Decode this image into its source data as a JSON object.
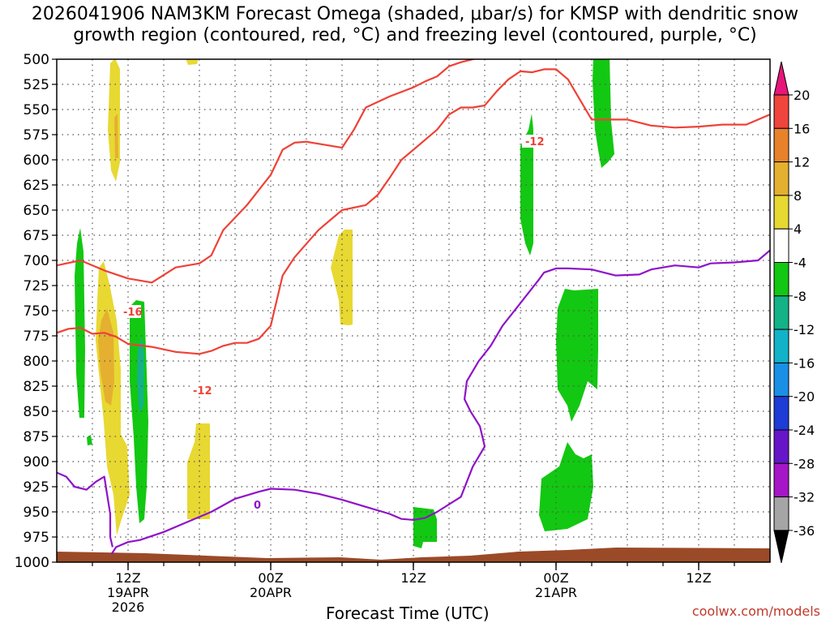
{
  "chart_data": {
    "type": "time-height contour",
    "title_line1": "2026041906 NAM3KM Forecast Omega (shaded, μbar/s) for KMSP with dendritic snow",
    "title_line2": "growth region (contoured, red, °C) and freezing level (contoured, purple, °C)",
    "xlabel": "Forecast Time (UTC)",
    "credit": "coolwx.com/models",
    "x_range_hours": [
      0,
      60
    ],
    "x_ticks": [
      {
        "hour": 6,
        "label": "12Z",
        "date1": "19APR",
        "date2": "2026"
      },
      {
        "hour": 18,
        "label": "00Z",
        "date1": "20APR",
        "date2": ""
      },
      {
        "hour": 30,
        "label": "12Z",
        "date1": "",
        "date2": ""
      },
      {
        "hour": 42,
        "label": "00Z",
        "date1": "21APR",
        "date2": ""
      },
      {
        "hour": 54,
        "label": "12Z",
        "date1": "",
        "date2": ""
      }
    ],
    "y_range_mb": [
      500,
      1000
    ],
    "y_ticks": [
      500,
      525,
      550,
      575,
      600,
      625,
      650,
      675,
      700,
      725,
      750,
      775,
      800,
      825,
      850,
      875,
      900,
      925,
      950,
      975,
      1000
    ],
    "colorbar": {
      "labels": [
        "20",
        "16",
        "12",
        "8",
        "4",
        "-4",
        "-8",
        "-12",
        "-16",
        "-20",
        "-24",
        "-28",
        "-32",
        "-36"
      ],
      "colors": [
        "#e8157a",
        "#f0453c",
        "#e8822a",
        "#e5b030",
        "#e8d832",
        "#ffffff",
        "#12c812",
        "#13b387",
        "#12b2c8",
        "#1a8fe6",
        "#1e3cd6",
        "#6616c8",
        "#a516c8",
        "#a5a5a5",
        "#000000"
      ]
    },
    "contour_labels": {
      "dgz_top": "-16",
      "dgz_mid_a": "-12",
      "dgz_mid_b": "-12",
      "freezing": "0"
    },
    "series": [
      {
        "name": "-16C isotherm (red)",
        "color": "#ef4136",
        "points": [
          [
            0,
            705
          ],
          [
            2,
            700
          ],
          [
            4,
            710
          ],
          [
            6,
            718
          ],
          [
            8,
            722
          ],
          [
            10,
            707
          ],
          [
            12,
            703
          ],
          [
            13,
            695
          ],
          [
            14,
            670
          ],
          [
            16,
            645
          ],
          [
            17,
            630
          ],
          [
            18,
            615
          ],
          [
            19,
            590
          ],
          [
            20,
            583
          ],
          [
            21,
            582
          ],
          [
            22,
            584
          ],
          [
            24,
            588
          ],
          [
            25,
            570
          ],
          [
            26,
            548
          ],
          [
            28,
            537
          ],
          [
            30,
            528
          ],
          [
            31,
            522
          ],
          [
            32,
            517
          ],
          [
            33,
            507
          ],
          [
            34,
            503
          ],
          [
            36,
            497
          ],
          [
            38,
            493
          ],
          [
            40,
            490
          ],
          [
            42,
            488
          ],
          [
            44,
            485
          ],
          [
            46,
            480
          ],
          [
            50,
            485
          ]
        ]
      },
      {
        "name": "-12C isotherm (red)",
        "color": "#ef4136",
        "points": [
          [
            0,
            772
          ],
          [
            1,
            768
          ],
          [
            2,
            767
          ],
          [
            3,
            773
          ],
          [
            4,
            772
          ],
          [
            5,
            776
          ],
          [
            6,
            783
          ],
          [
            8,
            786
          ],
          [
            10,
            791
          ],
          [
            12,
            793
          ],
          [
            13,
            790
          ],
          [
            14,
            785
          ],
          [
            15,
            782
          ],
          [
            16,
            782
          ],
          [
            17,
            778
          ],
          [
            18,
            765
          ],
          [
            19,
            715
          ],
          [
            20,
            697
          ],
          [
            22,
            670
          ],
          [
            23,
            660
          ],
          [
            24,
            650
          ],
          [
            26,
            645
          ],
          [
            27,
            635
          ],
          [
            28,
            618
          ],
          [
            29,
            600
          ],
          [
            30,
            590
          ],
          [
            31,
            580
          ],
          [
            32,
            570
          ],
          [
            33,
            555
          ],
          [
            34,
            548
          ],
          [
            35,
            548
          ],
          [
            36,
            546
          ],
          [
            37,
            532
          ],
          [
            38,
            520
          ],
          [
            39,
            512
          ],
          [
            40,
            513
          ],
          [
            41,
            510
          ],
          [
            42,
            510
          ],
          [
            43,
            520
          ],
          [
            44,
            540
          ],
          [
            45,
            560
          ],
          [
            46,
            560
          ],
          [
            47,
            560
          ],
          [
            48,
            560
          ],
          [
            50,
            566
          ],
          [
            52,
            568
          ],
          [
            54,
            567
          ],
          [
            56,
            565
          ],
          [
            58,
            565
          ],
          [
            60,
            555
          ]
        ]
      },
      {
        "name": "0C isotherm / freezing level (purple)",
        "color": "#8f12c8",
        "points": [
          [
            4.6,
            992
          ],
          [
            5,
            985
          ],
          [
            6,
            980
          ],
          [
            7,
            978
          ],
          [
            9,
            970
          ],
          [
            11,
            960
          ],
          [
            13,
            950
          ],
          [
            15,
            937
          ],
          [
            17,
            930
          ],
          [
            18,
            927
          ],
          [
            20,
            928
          ],
          [
            22,
            932
          ],
          [
            24,
            938
          ],
          [
            26,
            945
          ],
          [
            28,
            952
          ],
          [
            29,
            957
          ],
          [
            30,
            958
          ],
          [
            31,
            956
          ],
          [
            32,
            950
          ],
          [
            34,
            935
          ],
          [
            35,
            905
          ],
          [
            36,
            885
          ],
          [
            35.6,
            865
          ],
          [
            34.8,
            850
          ],
          [
            34.3,
            838
          ],
          [
            34.5,
            820
          ],
          [
            35.5,
            800
          ],
          [
            36.5,
            785
          ],
          [
            37.5,
            765
          ],
          [
            38.5,
            750
          ],
          [
            39.5,
            735
          ],
          [
            40.5,
            720
          ],
          [
            41,
            712
          ],
          [
            42,
            708
          ],
          [
            43,
            708
          ],
          [
            45,
            709
          ],
          [
            47,
            715
          ],
          [
            49,
            714
          ],
          [
            50,
            709
          ],
          [
            52,
            705
          ],
          [
            54,
            707
          ],
          [
            55,
            703
          ],
          [
            57,
            702
          ],
          [
            59,
            700
          ],
          [
            60,
            690
          ]
        ]
      },
      {
        "name": "0C isotherm left segment (purple)",
        "color": "#8f12c8",
        "points": [
          [
            0,
            911
          ],
          [
            0.8,
            915
          ],
          [
            1.5,
            925
          ],
          [
            2.5,
            928
          ],
          [
            3.3,
            920
          ],
          [
            4,
            915
          ],
          [
            4.2,
            930
          ],
          [
            4.5,
            952
          ],
          [
            4.5,
            975
          ],
          [
            4.7,
            985
          ]
        ]
      }
    ],
    "omega_regions": [
      {
        "value_range": [
          4,
          8
        ],
        "color": "#e8d832",
        "label": "upward weak (yellow)"
      },
      {
        "value_range": [
          8,
          12
        ],
        "color": "#e5b030",
        "label": "orange core"
      },
      {
        "value_range": [
          -8,
          -4
        ],
        "color": "#12c812",
        "label": "green"
      },
      {
        "value_range": [
          -12,
          -8
        ],
        "color": "#13b387",
        "label": "teal"
      }
    ]
  }
}
